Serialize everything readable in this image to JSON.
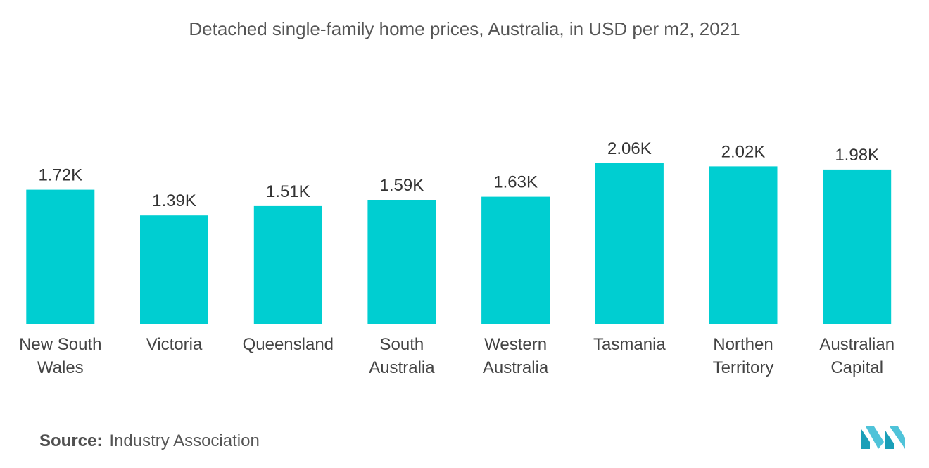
{
  "chart_data": {
    "type": "bar",
    "title": "Detached single-family home prices, Australia, in USD per m2, 2021",
    "categories": [
      [
        "New South",
        "Wales"
      ],
      [
        "Victoria"
      ],
      [
        "Queensland"
      ],
      [
        "South",
        "Australia"
      ],
      [
        "Western",
        "Australia"
      ],
      [
        "Tasmania"
      ],
      [
        "Northen",
        "Territory"
      ],
      [
        "Australian",
        "Capital"
      ]
    ],
    "values": [
      1720,
      1390,
      1510,
      1590,
      1630,
      2060,
      2020,
      1980
    ],
    "value_labels": [
      "1.72K",
      "1.39K",
      "1.51K",
      "1.59K",
      "1.63K",
      "2.06K",
      "2.02K",
      "1.98K"
    ],
    "ylim": [
      0,
      2060
    ],
    "bar_color": "#00CED1",
    "grid": false,
    "legend": "none"
  },
  "source": {
    "label": "Source:",
    "text": "Industry Association"
  },
  "logo": {
    "name": "mordor-intelligence-logo",
    "colors": [
      "#1a9fb8",
      "#4fc3d9"
    ]
  }
}
